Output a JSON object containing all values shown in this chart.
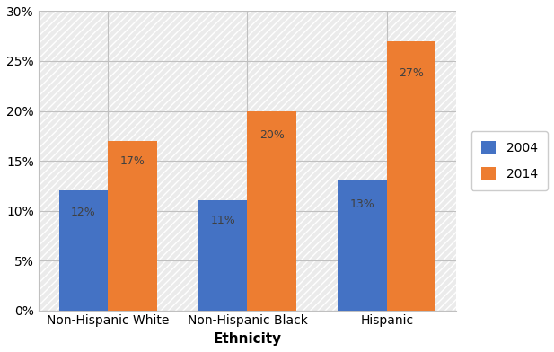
{
  "categories": [
    "Non-Hispanic White",
    "Non-Hispanic Black",
    "Hispanic"
  ],
  "values_2004": [
    0.12,
    0.11,
    0.13
  ],
  "values_2014": [
    0.17,
    0.2,
    0.27
  ],
  "labels_2004": [
    "12%",
    "11%",
    "13%"
  ],
  "labels_2014": [
    "17%",
    "20%",
    "27%"
  ],
  "color_2004": "#4472C4",
  "color_2014": "#ED7D31",
  "legend_2004": "2004",
  "legend_2014": "2014",
  "xlabel": "Ethnicity",
  "xlabel_fontweight": "bold",
  "ylim": [
    0,
    0.3
  ],
  "yticks": [
    0.0,
    0.05,
    0.1,
    0.15,
    0.2,
    0.25,
    0.3
  ],
  "ytick_labels": [
    "0%",
    "5%",
    "10%",
    "15%",
    "20%",
    "25%",
    "30%"
  ],
  "bar_width": 0.35,
  "background_color": "#ffffff",
  "grid_color": "#c0c0c0",
  "label_fontsize": 9,
  "axis_fontsize": 10,
  "legend_fontsize": 10,
  "label_color": "#404040"
}
